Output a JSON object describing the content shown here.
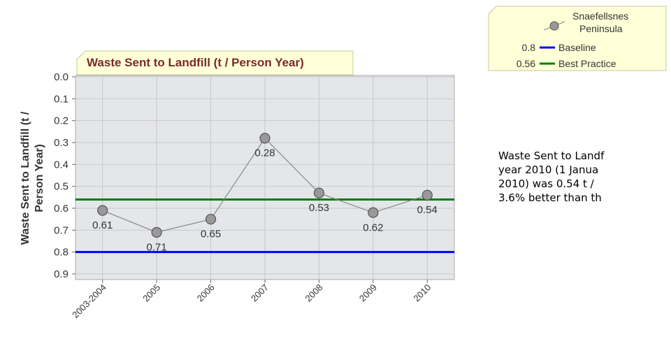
{
  "chart_data": {
    "type": "line",
    "title": "Waste Sent to Landfill (t / Person Year)",
    "ylabel": [
      "Waste Sent to Landfill (t /",
      "Person Year)"
    ],
    "categories": [
      "2003-2004",
      "2005",
      "2006",
      "2007",
      "2008",
      "2009",
      "2010"
    ],
    "series": [
      {
        "name": "Snaefellsnes Peninsula",
        "color": "#999999",
        "values": [
          0.61,
          0.71,
          0.65,
          0.28,
          0.53,
          0.62,
          0.54
        ]
      }
    ],
    "reference_lines": [
      {
        "name": "Baseline",
        "value": 0.8,
        "color": "#0000ff"
      },
      {
        "name": "Best Practice",
        "value": 0.56,
        "color": "#008000"
      }
    ],
    "ylim": [
      0,
      0.9
    ],
    "inverted_y": true,
    "yticks": [
      {
        "value": 0,
        "label": "0.0"
      },
      0.1,
      0.2,
      0.3,
      0.4,
      0.5,
      0.6,
      0.7,
      0.8,
      0.9
    ],
    "grid": true
  },
  "description_lines": [
    "Waste Sent to Landf",
    "year 2010 (1 Janua",
    "2010) was 0.54 t /",
    "3.6% better than th"
  ]
}
